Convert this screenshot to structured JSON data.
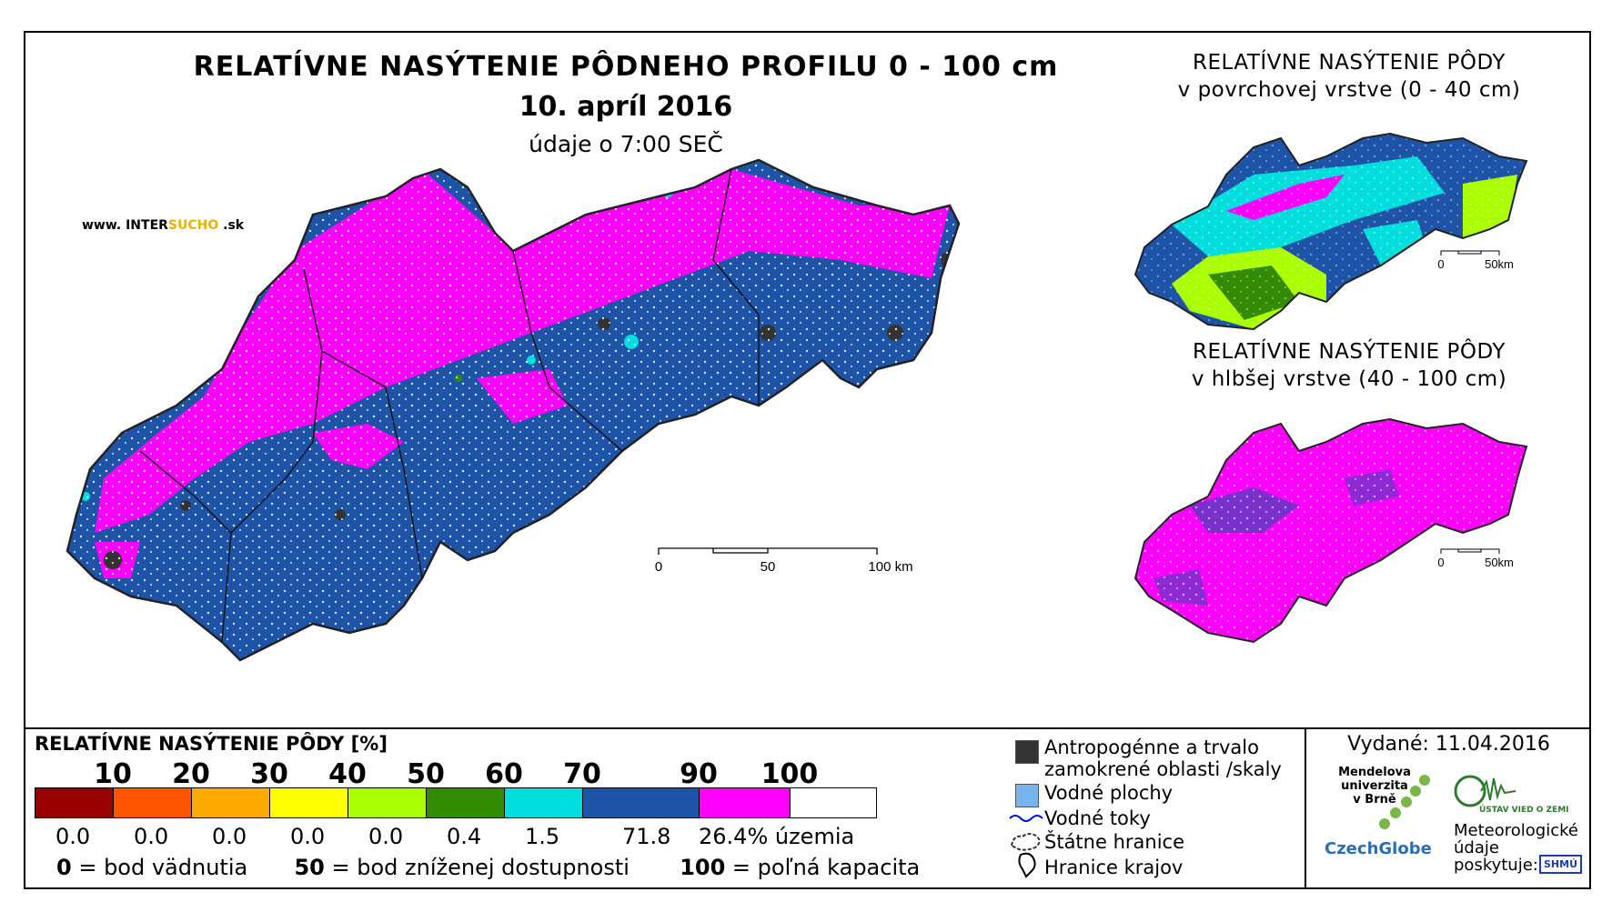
{
  "title": {
    "main": "RELATÍVNE NASÝTENIE PÔDNEHO PROFILU 0 - 100 cm",
    "date": "10. apríl 2016",
    "time": "údaje o 7:00 SEČ"
  },
  "website": {
    "prefix": "www. INTER",
    "accent": "SUCHO",
    "suffix": " .sk"
  },
  "inset_top": {
    "title_line1": "RELATÍVNE NASÝTENIE PÔDY",
    "title_line2": "v povrchovej vrstve (0 - 40 cm)",
    "scale_0": "0",
    "scale_50": "50km"
  },
  "inset_bottom": {
    "title_line1": "RELATÍVNE NASÝTENIE PÔDY",
    "title_line2": "v hlbšej vrstve (40 - 100 cm)",
    "scale_0": "0",
    "scale_50": "50km"
  },
  "main_scale": {
    "label_0": "0",
    "label_50": "50",
    "label_100": "100 km"
  },
  "legend": {
    "title": "RELATÍVNE NASÝTENIE PÔDY [%]",
    "ticks": [
      "10",
      "20",
      "30",
      "40",
      "50",
      "60",
      "70",
      "90",
      "100"
    ],
    "classes": [
      {
        "color": "#990000",
        "percent": "0.0"
      },
      {
        "color": "#ff5500",
        "percent": "0.0"
      },
      {
        "color": "#ffaa00",
        "percent": "0.0"
      },
      {
        "color": "#ffff00",
        "percent": "0.0"
      },
      {
        "color": "#aaff00",
        "percent": "0.0"
      },
      {
        "color": "#338c00",
        "percent": "0.4"
      },
      {
        "color": "#00dddd",
        "percent": "1.5"
      },
      {
        "color": "#1e54a8",
        "percent": "71.8"
      },
      {
        "color": "#ff00ff",
        "percent": "26.4% územia"
      }
    ],
    "note_0_num": "0",
    "note_0_text": " = bod vädnutia",
    "note_50_num": "50",
    "note_50_text": " = bod zníženej dostupnosti",
    "note_100_num": "100",
    "note_100_text": " = poľná kapacita"
  },
  "symbols": {
    "anthropogenic_line1": "Antropogénne a trvalo",
    "anthropogenic_line2": "zamokrené oblasti /skaly",
    "water_areas": "Vodné plochy",
    "streams": "Vodné toky",
    "state_border": "Štátne hranice",
    "region_border": "Hranice krajov"
  },
  "issued": "Vydané: 11.04.2016",
  "orgs": {
    "mendel_line1": "Mendelova",
    "mendel_line2": "univerzita",
    "mendel_line3": "v Brně",
    "czechglobe": "CzechGlobe",
    "ustav": "ÚSTAV VIED O ZEMI",
    "meteo_line1": "Meteorologické",
    "meteo_line2": "údaje",
    "meteo_line3": "poskytuje:",
    "shmu": "SHMÚ"
  }
}
